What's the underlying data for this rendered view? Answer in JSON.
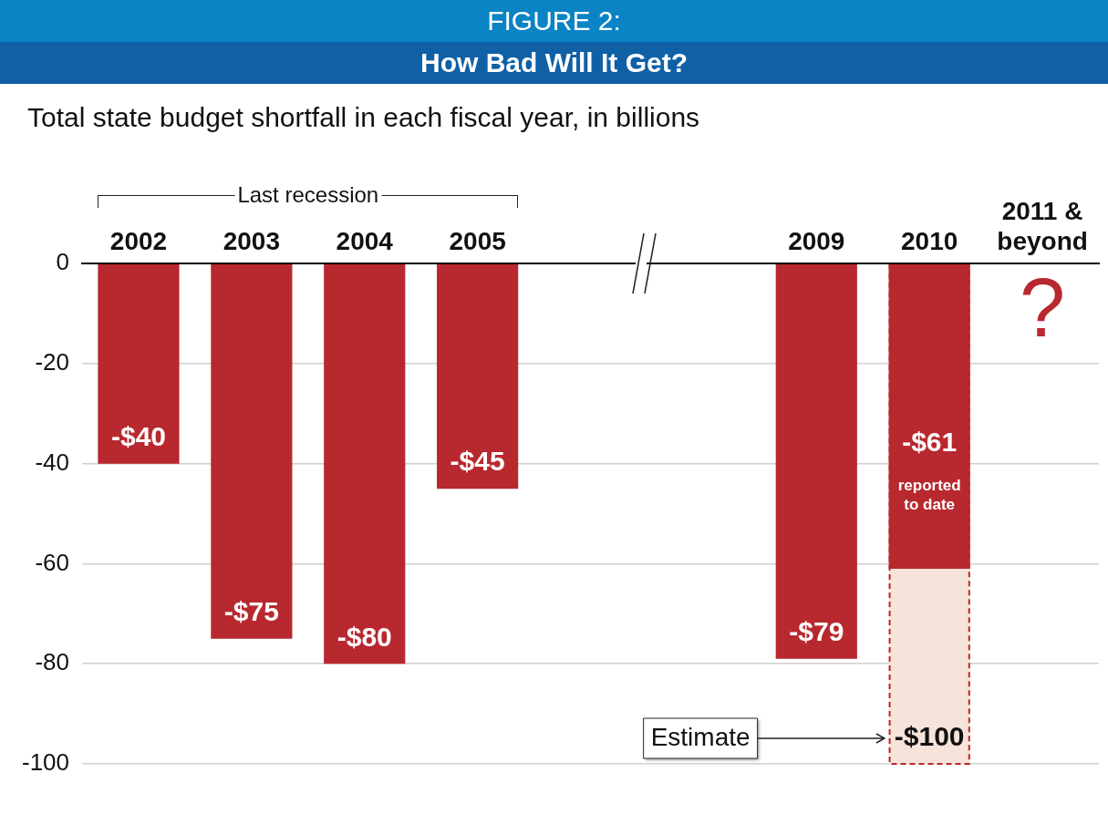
{
  "chart_data": {
    "type": "bar",
    "title": "FIGURE 2:",
    "subtitle": "How Bad Will It Get?",
    "ylabel": "Total state budget shortfall in each fiscal year, in billions",
    "categories": [
      "2002",
      "2003",
      "2004",
      "2005",
      null,
      null,
      "2009",
      "2010",
      "2011 & beyond"
    ],
    "stacked": false,
    "series": [
      {
        "color": "#b8282f",
        "values": [
          -40,
          -75,
          -80,
          -45,
          null,
          null,
          -79,
          -61,
          null
        ],
        "value_labels": [
          "-$40",
          "-$75",
          "-$80",
          "-$45",
          null,
          null,
          "-$79",
          "-$61",
          null
        ]
      },
      {
        "color": "#f6e3da",
        "line_style": "dashed",
        "values": [
          null,
          null,
          null,
          null,
          null,
          null,
          null,
          -100,
          null
        ],
        "value_labels": [
          null,
          null,
          null,
          null,
          null,
          null,
          null,
          "-$100",
          null
        ]
      }
    ],
    "ylim": [
      -100,
      0
    ],
    "yticks": [
      0,
      -20,
      -40,
      -60,
      -80,
      -100
    ],
    "grid": "y",
    "legend": false,
    "annotations": [
      "Last recession",
      "reported to date",
      "Estimate",
      "?"
    ]
  }
}
